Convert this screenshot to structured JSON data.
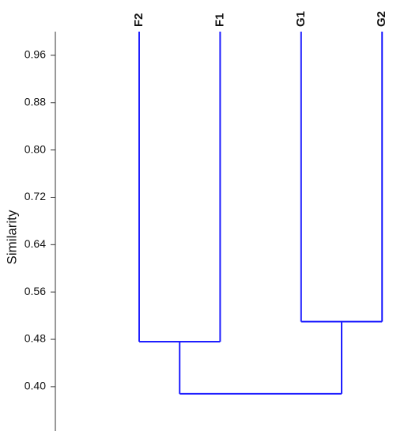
{
  "chart_data": {
    "type": "dendrogram",
    "y_label": "Similarity",
    "leaves": [
      "F2",
      "F1",
      "G1",
      "G2"
    ],
    "merges": [
      {
        "left": 0,
        "right": 1,
        "similarity": 0.476
      },
      {
        "left": 2,
        "right": 3,
        "similarity": 0.51
      },
      {
        "left": 4,
        "right": 5,
        "similarity": 0.388
      }
    ],
    "color": "#1f1fff",
    "ylim": [
      0.325,
      1.0
    ],
    "yticks": [
      {
        "value": 0.4,
        "label": "0.40"
      },
      0.48,
      0.56,
      0.64,
      0.72,
      {
        "value": 0.8,
        "label": "0.80"
      },
      0.88,
      0.96
    ]
  }
}
